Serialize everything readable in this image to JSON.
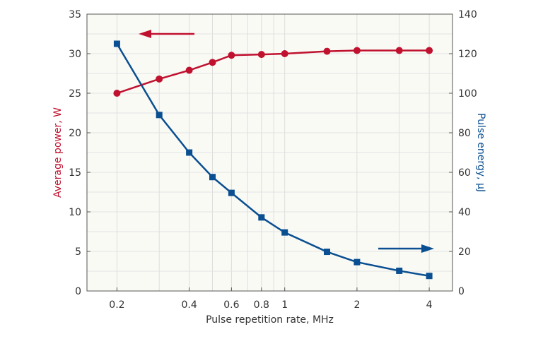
{
  "chart_data": {
    "type": "line",
    "title": "",
    "xlabel": "Pulse repetition rate, MHz",
    "ylabel_left": "Average power, W",
    "ylabel_right": "Pulse energy, µJ",
    "x_scale": "log",
    "xlim": [
      0.15,
      5
    ],
    "ylim_left": [
      0,
      35
    ],
    "ylim_right": [
      0,
      140
    ],
    "x_ticks": [
      0.2,
      0.4,
      0.6,
      0.8,
      1,
      2,
      4
    ],
    "x_tick_labels": [
      "0.2",
      "0.4",
      "0.6",
      "0.8",
      "1",
      "2",
      "4"
    ],
    "x_gridlines": [
      0.2,
      0.3,
      0.4,
      0.5,
      0.6,
      0.7,
      0.8,
      0.9,
      1,
      2,
      3,
      4
    ],
    "y_ticks_left": [
      0,
      5,
      10,
      15,
      20,
      25,
      30,
      35
    ],
    "y_ticks_right": [
      0,
      20,
      40,
      60,
      80,
      100,
      120,
      140
    ],
    "grid": true,
    "background": "#fafaf5",
    "series": [
      {
        "axis": "left",
        "marker": "circle",
        "color": "#c0112f",
        "x": [
          0.2,
          0.3,
          0.4,
          0.5,
          0.6,
          0.8,
          1,
          1.5,
          2,
          3,
          4
        ],
        "values": [
          25,
          26.8,
          27.9,
          28.9,
          29.8,
          29.9,
          30,
          30.3,
          30.4,
          30.4,
          30.4
        ]
      },
      {
        "axis": "right",
        "marker": "square",
        "color": "#0a4f91",
        "x": [
          0.2,
          0.3,
          0.4,
          0.5,
          0.6,
          0.8,
          1,
          1.5,
          2,
          3,
          4
        ],
        "values": [
          125,
          89,
          70,
          57.6,
          49.6,
          37.2,
          29.6,
          19.8,
          14.6,
          10.2,
          7.6
        ]
      }
    ],
    "annotations": [
      {
        "type": "arrow",
        "direction": "left",
        "color": "#c0112f",
        "points_to": "left axis"
      },
      {
        "type": "arrow",
        "direction": "right",
        "color": "#0a4f91",
        "points_to": "right axis"
      }
    ]
  }
}
